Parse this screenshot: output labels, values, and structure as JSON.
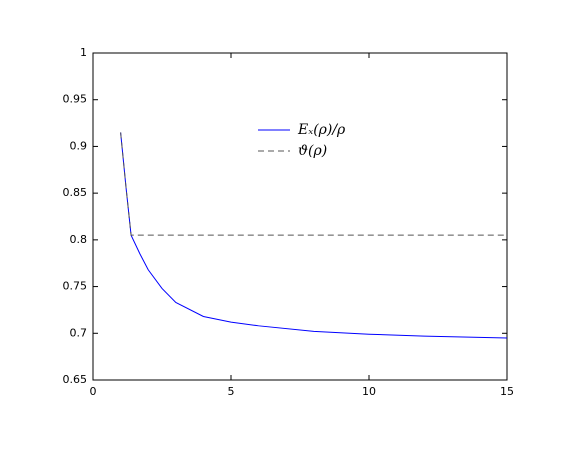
{
  "chart_data": {
    "type": "line",
    "series": [
      {
        "name": "Eₓ(ρ)/ρ",
        "color": "#0000ff",
        "line_style": "solid",
        "x": [
          1,
          1.2,
          1.38,
          1.7,
          2,
          2.5,
          3,
          4,
          5,
          6,
          8,
          10,
          12,
          15
        ],
        "values": [
          0.915,
          0.855,
          0.805,
          0.785,
          0.768,
          0.748,
          0.733,
          0.718,
          0.712,
          0.708,
          0.702,
          0.699,
          0.697,
          0.695
        ]
      },
      {
        "name": "ϑ(ρ)",
        "color": "#555555",
        "line_style": "dashed",
        "x": [
          1,
          1.2,
          1.38,
          15
        ],
        "values": [
          0.915,
          0.855,
          0.805,
          0.805
        ]
      }
    ],
    "xlim": [
      0,
      15
    ],
    "xticks": [
      0,
      5,
      10,
      15
    ],
    "ylim": [
      0.65,
      1
    ],
    "yticks": [
      0.65,
      0.7,
      0.75,
      0.8,
      0.85,
      0.9,
      0.95,
      1
    ],
    "grid": false,
    "legend": "top"
  }
}
